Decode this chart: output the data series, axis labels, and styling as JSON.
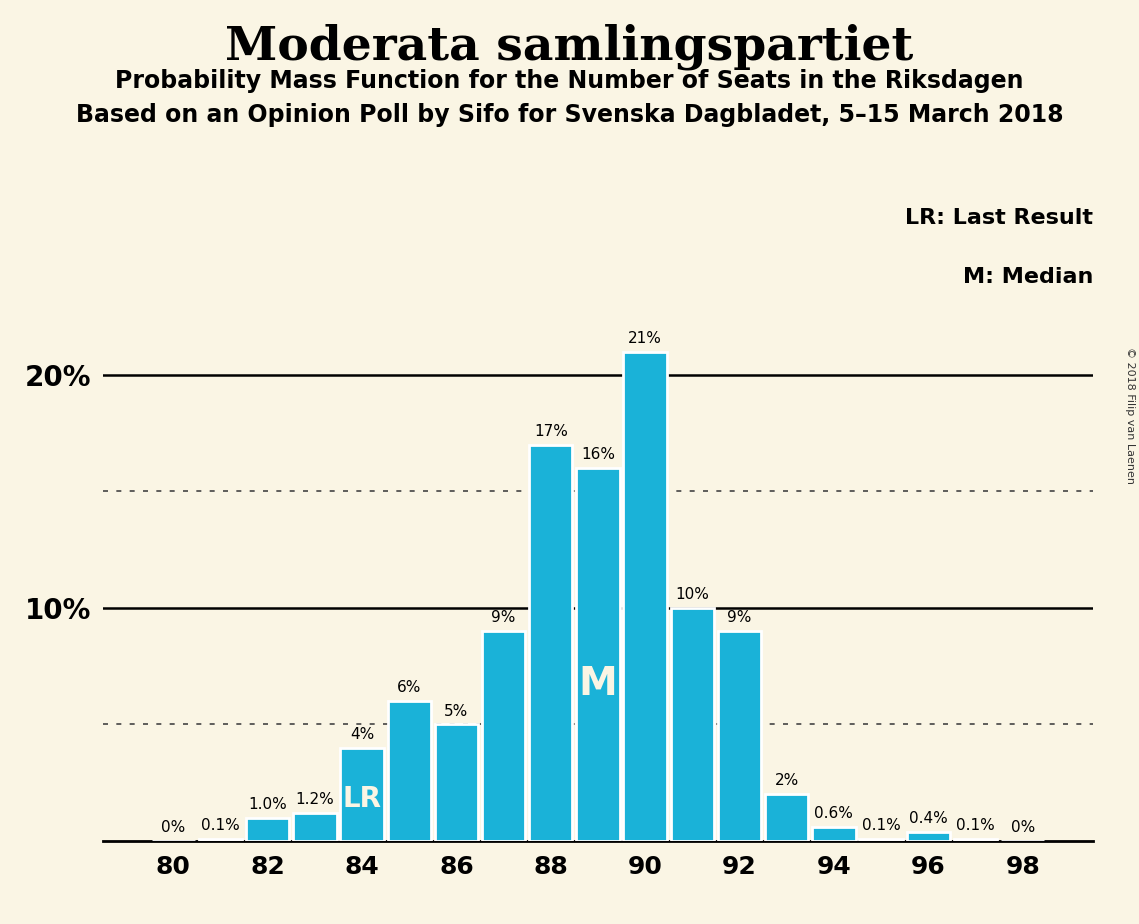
{
  "title": "Moderata samlingspartiet",
  "subtitle1": "Probability Mass Function for the Number of Seats in the Riksdagen",
  "subtitle2": "Based on an Opinion Poll by Sifo for Svenska Dagbladet, 5–15 March 2018",
  "copyright": "© 2018 Filip van Laenen",
  "seats": [
    80,
    81,
    82,
    83,
    84,
    85,
    86,
    87,
    88,
    89,
    90,
    91,
    92,
    93,
    94,
    95,
    96,
    97,
    98
  ],
  "probabilities": [
    0.0,
    0.1,
    1.0,
    1.2,
    4.0,
    6.0,
    5.0,
    9.0,
    17.0,
    16.0,
    21.0,
    10.0,
    9.0,
    2.0,
    0.6,
    0.1,
    0.4,
    0.1,
    0.0
  ],
  "labels": [
    "0%",
    "0.1%",
    "1.0%",
    "1.2%",
    "4%",
    "6%",
    "5%",
    "9%",
    "17%",
    "16%",
    "21%",
    "10%",
    "9%",
    "2%",
    "0.6%",
    "0.1%",
    "0.4%",
    "0.1%",
    "0%"
  ],
  "bar_color": "#1ab2d8",
  "bg_color": "#faf5e4",
  "lr_seat": 84,
  "median_seat": 89,
  "ylim": [
    0,
    23
  ],
  "xticks": [
    80,
    82,
    84,
    86,
    88,
    90,
    92,
    94,
    96,
    98
  ],
  "hlines": [
    10,
    20
  ],
  "dotted_hlines": [
    5,
    15
  ]
}
